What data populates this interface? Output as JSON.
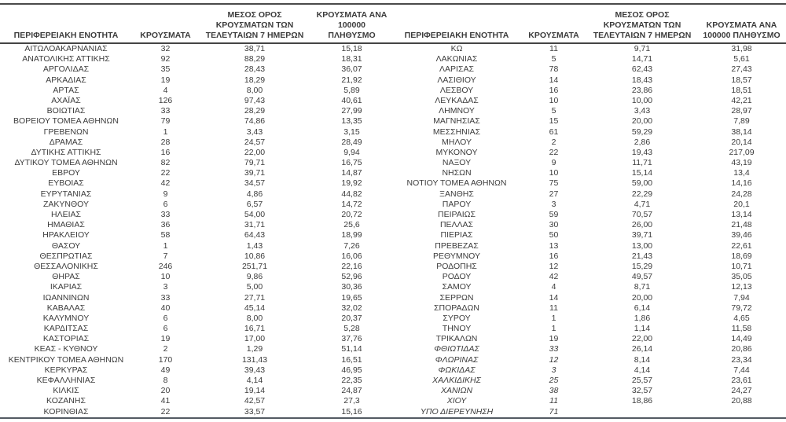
{
  "headers": {
    "region": "ΠΕΡΙΦΕΡΕΙΑΚΗ ΕΝΟΤΗΤΑ",
    "cases": "ΚΡΟΥΣΜΑΤΑ",
    "avg7": "ΜΕΣΟΣ ΟΡΟΣ ΚΡΟΥΣΜΑΤΩΝ ΤΩΝ ΤΕΛΕΥΤΑΙΩΝ 7 ΗΜΕΡΩΝ",
    "per100k": "ΚΡΟΥΣΜΑΤΑ ΑΝΑ 100000 ΠΛΗΘΥΣΜΟ"
  },
  "colors": {
    "text": "#3c3c3c",
    "rule": "#4a4a4a",
    "bottom_rule": "#535b63",
    "background": "#ffffff"
  },
  "table": {
    "left_rows": [
      {
        "region": "ΑΙΤΩΛΟΑΚΑΡΝΑΝΙΑΣ",
        "cases": "32",
        "avg7": "38,71",
        "per100k": "15,18",
        "italic": false
      },
      {
        "region": "ΑΝΑΤΟΛΙΚΗΣ ΑΤΤΙΚΗΣ",
        "cases": "92",
        "avg7": "88,29",
        "per100k": "18,31",
        "italic": false
      },
      {
        "region": "ΑΡΓΟΛΙΔΑΣ",
        "cases": "35",
        "avg7": "28,43",
        "per100k": "36,07",
        "italic": false
      },
      {
        "region": "ΑΡΚΑΔΙΑΣ",
        "cases": "19",
        "avg7": "18,29",
        "per100k": "21,92",
        "italic": false
      },
      {
        "region": "ΑΡΤΑΣ",
        "cases": "4",
        "avg7": "8,00",
        "per100k": "5,89",
        "italic": false
      },
      {
        "region": "ΑΧΑΪΑΣ",
        "cases": "126",
        "avg7": "97,43",
        "per100k": "40,61",
        "italic": false
      },
      {
        "region": "ΒΟΙΩΤΙΑΣ",
        "cases": "33",
        "avg7": "28,29",
        "per100k": "27,99",
        "italic": false
      },
      {
        "region": "ΒΟΡΕΙΟΥ ΤΟΜΕΑ ΑΘΗΝΩΝ",
        "cases": "79",
        "avg7": "74,86",
        "per100k": "13,35",
        "italic": false
      },
      {
        "region": "ΓΡΕΒΕΝΩΝ",
        "cases": "1",
        "avg7": "3,43",
        "per100k": "3,15",
        "italic": false
      },
      {
        "region": "ΔΡΑΜΑΣ",
        "cases": "28",
        "avg7": "24,57",
        "per100k": "28,49",
        "italic": false
      },
      {
        "region": "ΔΥΤΙΚΗΣ ΑΤΤΙΚΗΣ",
        "cases": "16",
        "avg7": "22,00",
        "per100k": "9,94",
        "italic": false
      },
      {
        "region": "ΔΥΤΙΚΟΥ ΤΟΜΕΑ ΑΘΗΝΩΝ",
        "cases": "82",
        "avg7": "79,71",
        "per100k": "16,75",
        "italic": false
      },
      {
        "region": "ΕΒΡΟΥ",
        "cases": "22",
        "avg7": "39,71",
        "per100k": "14,87",
        "italic": false
      },
      {
        "region": "ΕΥΒΟΙΑΣ",
        "cases": "42",
        "avg7": "34,57",
        "per100k": "19,92",
        "italic": false
      },
      {
        "region": "ΕΥΡΥΤΑΝΙΑΣ",
        "cases": "9",
        "avg7": "4,86",
        "per100k": "44,82",
        "italic": false
      },
      {
        "region": "ΖΑΚΥΝΘΟΥ",
        "cases": "6",
        "avg7": "6,57",
        "per100k": "14,72",
        "italic": false
      },
      {
        "region": "ΗΛΕΙΑΣ",
        "cases": "33",
        "avg7": "54,00",
        "per100k": "20,72",
        "italic": false
      },
      {
        "region": "ΗΜΑΘΙΑΣ",
        "cases": "36",
        "avg7": "31,71",
        "per100k": "25,6",
        "italic": false
      },
      {
        "region": "ΗΡΑΚΛΕΙΟΥ",
        "cases": "58",
        "avg7": "64,43",
        "per100k": "18,99",
        "italic": false
      },
      {
        "region": "ΘΑΣΟΥ",
        "cases": "1",
        "avg7": "1,43",
        "per100k": "7,26",
        "italic": false
      },
      {
        "region": "ΘΕΣΠΡΩΤΙΑΣ",
        "cases": "7",
        "avg7": "10,86",
        "per100k": "16,06",
        "italic": false
      },
      {
        "region": "ΘΕΣΣΑΛΟΝΙΚΗΣ",
        "cases": "246",
        "avg7": "251,71",
        "per100k": "22,16",
        "italic": false
      },
      {
        "region": "ΘΗΡΑΣ",
        "cases": "10",
        "avg7": "9,86",
        "per100k": "52,96",
        "italic": false
      },
      {
        "region": "ΙΚΑΡΙΑΣ",
        "cases": "3",
        "avg7": "5,00",
        "per100k": "30,36",
        "italic": false
      },
      {
        "region": "ΙΩΑΝΝΙΝΩΝ",
        "cases": "33",
        "avg7": "27,71",
        "per100k": "19,65",
        "italic": false
      },
      {
        "region": "ΚΑΒΑΛΑΣ",
        "cases": "40",
        "avg7": "45,14",
        "per100k": "32,02",
        "italic": false
      },
      {
        "region": "ΚΑΛΥΜΝΟΥ",
        "cases": "6",
        "avg7": "8,00",
        "per100k": "20,37",
        "italic": false
      },
      {
        "region": "ΚΑΡΔΙΤΣΑΣ",
        "cases": "6",
        "avg7": "16,71",
        "per100k": "5,28",
        "italic": false
      },
      {
        "region": "ΚΑΣΤΟΡΙΑΣ",
        "cases": "19",
        "avg7": "17,00",
        "per100k": "37,76",
        "italic": false
      },
      {
        "region": "ΚΕΑΣ - ΚΥΘΝΟΥ",
        "cases": "2",
        "avg7": "1,29",
        "per100k": "51,14",
        "italic": false
      },
      {
        "region": "ΚΕΝΤΡΙΚΟΥ ΤΟΜΕΑ ΑΘΗΝΩΝ",
        "cases": "170",
        "avg7": "131,43",
        "per100k": "16,51",
        "italic": false
      },
      {
        "region": "ΚΕΡΚΥΡΑΣ",
        "cases": "49",
        "avg7": "39,43",
        "per100k": "46,95",
        "italic": false
      },
      {
        "region": "ΚΕΦΑΛΛΗΝΙΑΣ",
        "cases": "8",
        "avg7": "4,14",
        "per100k": "22,35",
        "italic": false
      },
      {
        "region": "ΚΙΛΚΙΣ",
        "cases": "20",
        "avg7": "19,14",
        "per100k": "24,87",
        "italic": false
      },
      {
        "region": "ΚΟΖΑΝΗΣ",
        "cases": "41",
        "avg7": "42,57",
        "per100k": "27,3",
        "italic": false
      },
      {
        "region": "ΚΟΡΙΝΘΙΑΣ",
        "cases": "22",
        "avg7": "33,57",
        "per100k": "15,16",
        "italic": false
      }
    ],
    "right_rows": [
      {
        "region": "ΚΩ",
        "cases": "11",
        "avg7": "9,71",
        "per100k": "31,98",
        "italic": false
      },
      {
        "region": "ΛΑΚΩΝΙΑΣ",
        "cases": "5",
        "avg7": "14,71",
        "per100k": "5,61",
        "italic": false
      },
      {
        "region": "ΛΑΡΙΣΑΣ",
        "cases": "78",
        "avg7": "62,43",
        "per100k": "27,43",
        "italic": false
      },
      {
        "region": "ΛΑΣΙΘΙΟΥ",
        "cases": "14",
        "avg7": "18,43",
        "per100k": "18,57",
        "italic": false
      },
      {
        "region": "ΛΕΣΒΟΥ",
        "cases": "16",
        "avg7": "23,86",
        "per100k": "18,51",
        "italic": false
      },
      {
        "region": "ΛΕΥΚΑΔΑΣ",
        "cases": "10",
        "avg7": "10,00",
        "per100k": "42,21",
        "italic": false
      },
      {
        "region": "ΛΗΜΝΟΥ",
        "cases": "5",
        "avg7": "3,43",
        "per100k": "28,97",
        "italic": false
      },
      {
        "region": "ΜΑΓΝΗΣΙΑΣ",
        "cases": "15",
        "avg7": "20,00",
        "per100k": "7,89",
        "italic": false
      },
      {
        "region": "ΜΕΣΣΗΝΙΑΣ",
        "cases": "61",
        "avg7": "59,29",
        "per100k": "38,14",
        "italic": false
      },
      {
        "region": "ΜΗΛΟΥ",
        "cases": "2",
        "avg7": "2,86",
        "per100k": "20,14",
        "italic": false
      },
      {
        "region": "ΜΥΚΟΝΟΥ",
        "cases": "22",
        "avg7": "19,43",
        "per100k": "217,09",
        "italic": false
      },
      {
        "region": "ΝΑΞΟΥ",
        "cases": "9",
        "avg7": "11,71",
        "per100k": "43,19",
        "italic": false
      },
      {
        "region": "ΝΗΣΩΝ",
        "cases": "10",
        "avg7": "15,14",
        "per100k": "13,4",
        "italic": false
      },
      {
        "region": "ΝΟΤΙΟΥ ΤΟΜΕΑ ΑΘΗΝΩΝ",
        "cases": "75",
        "avg7": "59,00",
        "per100k": "14,16",
        "italic": false
      },
      {
        "region": "ΞΑΝΘΗΣ",
        "cases": "27",
        "avg7": "22,29",
        "per100k": "24,28",
        "italic": false
      },
      {
        "region": "ΠΑΡΟΥ",
        "cases": "3",
        "avg7": "4,71",
        "per100k": "20,1",
        "italic": false
      },
      {
        "region": "ΠΕΙΡΑΙΩΣ",
        "cases": "59",
        "avg7": "70,57",
        "per100k": "13,14",
        "italic": false
      },
      {
        "region": "ΠΕΛΛΑΣ",
        "cases": "30",
        "avg7": "26,00",
        "per100k": "21,48",
        "italic": false
      },
      {
        "region": "ΠΙΕΡΙΑΣ",
        "cases": "50",
        "avg7": "39,71",
        "per100k": "39,46",
        "italic": false
      },
      {
        "region": "ΠΡΕΒΕΖΑΣ",
        "cases": "13",
        "avg7": "13,00",
        "per100k": "22,61",
        "italic": false
      },
      {
        "region": "ΡΕΘΥΜΝΟΥ",
        "cases": "16",
        "avg7": "21,43",
        "per100k": "18,69",
        "italic": false
      },
      {
        "region": "ΡΟΔΟΠΗΣ",
        "cases": "12",
        "avg7": "15,29",
        "per100k": "10,71",
        "italic": false
      },
      {
        "region": "ΡΟΔΟΥ",
        "cases": "42",
        "avg7": "49,57",
        "per100k": "35,05",
        "italic": false
      },
      {
        "region": "ΣΑΜΟΥ",
        "cases": "4",
        "avg7": "8,71",
        "per100k": "12,13",
        "italic": false
      },
      {
        "region": "ΣΕΡΡΩΝ",
        "cases": "14",
        "avg7": "20,00",
        "per100k": "7,94",
        "italic": false
      },
      {
        "region": "ΣΠΟΡΑΔΩΝ",
        "cases": "11",
        "avg7": "6,14",
        "per100k": "79,72",
        "italic": false
      },
      {
        "region": "ΣΥΡΟΥ",
        "cases": "1",
        "avg7": "1,86",
        "per100k": "4,65",
        "italic": false
      },
      {
        "region": "ΤΗΝΟΥ",
        "cases": "1",
        "avg7": "1,14",
        "per100k": "11,58",
        "italic": false
      },
      {
        "region": "ΤΡΙΚΑΛΩΝ",
        "cases": "19",
        "avg7": "22,00",
        "per100k": "14,49",
        "italic": false
      },
      {
        "region": "ΦΘΙΩΤΙΔΑΣ",
        "cases": "33",
        "avg7": "26,14",
        "per100k": "20,86",
        "italic": true
      },
      {
        "region": "ΦΛΩΡΙΝΑΣ",
        "cases": "12",
        "avg7": "8,14",
        "per100k": "23,34",
        "italic": true
      },
      {
        "region": "ΦΩΚΙΔΑΣ",
        "cases": "3",
        "avg7": "4,14",
        "per100k": "7,44",
        "italic": true
      },
      {
        "region": "ΧΑΛΚΙΔΙΚΗΣ",
        "cases": "25",
        "avg7": "25,57",
        "per100k": "23,61",
        "italic": true
      },
      {
        "region": "ΧΑΝΙΩΝ",
        "cases": "38",
        "avg7": "32,57",
        "per100k": "24,27",
        "italic": true
      },
      {
        "region": "ΧΙΟΥ",
        "cases": "11",
        "avg7": "18,86",
        "per100k": "20,88",
        "italic": true
      },
      {
        "region": "ΥΠΟ ΔΙΕΡΕΥΝΗΣΗ",
        "cases": "71",
        "avg7": "",
        "per100k": "",
        "italic": true
      }
    ]
  }
}
